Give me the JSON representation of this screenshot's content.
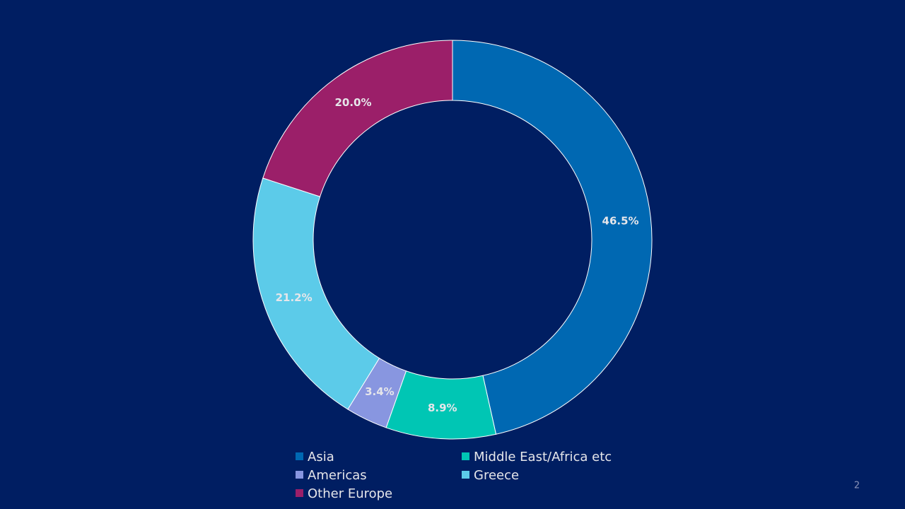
{
  "chart_data": {
    "type": "donut",
    "categories": [
      "Asia",
      "Middle East/Africa etc",
      "Americas",
      "Greece",
      "Other Europe"
    ],
    "values": [
      46.5,
      8.9,
      3.4,
      21.2,
      20.0
    ],
    "value_labels": [
      "46.5%",
      "8.9%",
      "3.4%",
      "21.2%",
      "20.0%"
    ],
    "colors": [
      "#0068b2",
      "#00c6b4",
      "#8896e0",
      "#5ccbe9",
      "#9b1f69"
    ],
    "legend": "bottom"
  },
  "page_number": "2"
}
